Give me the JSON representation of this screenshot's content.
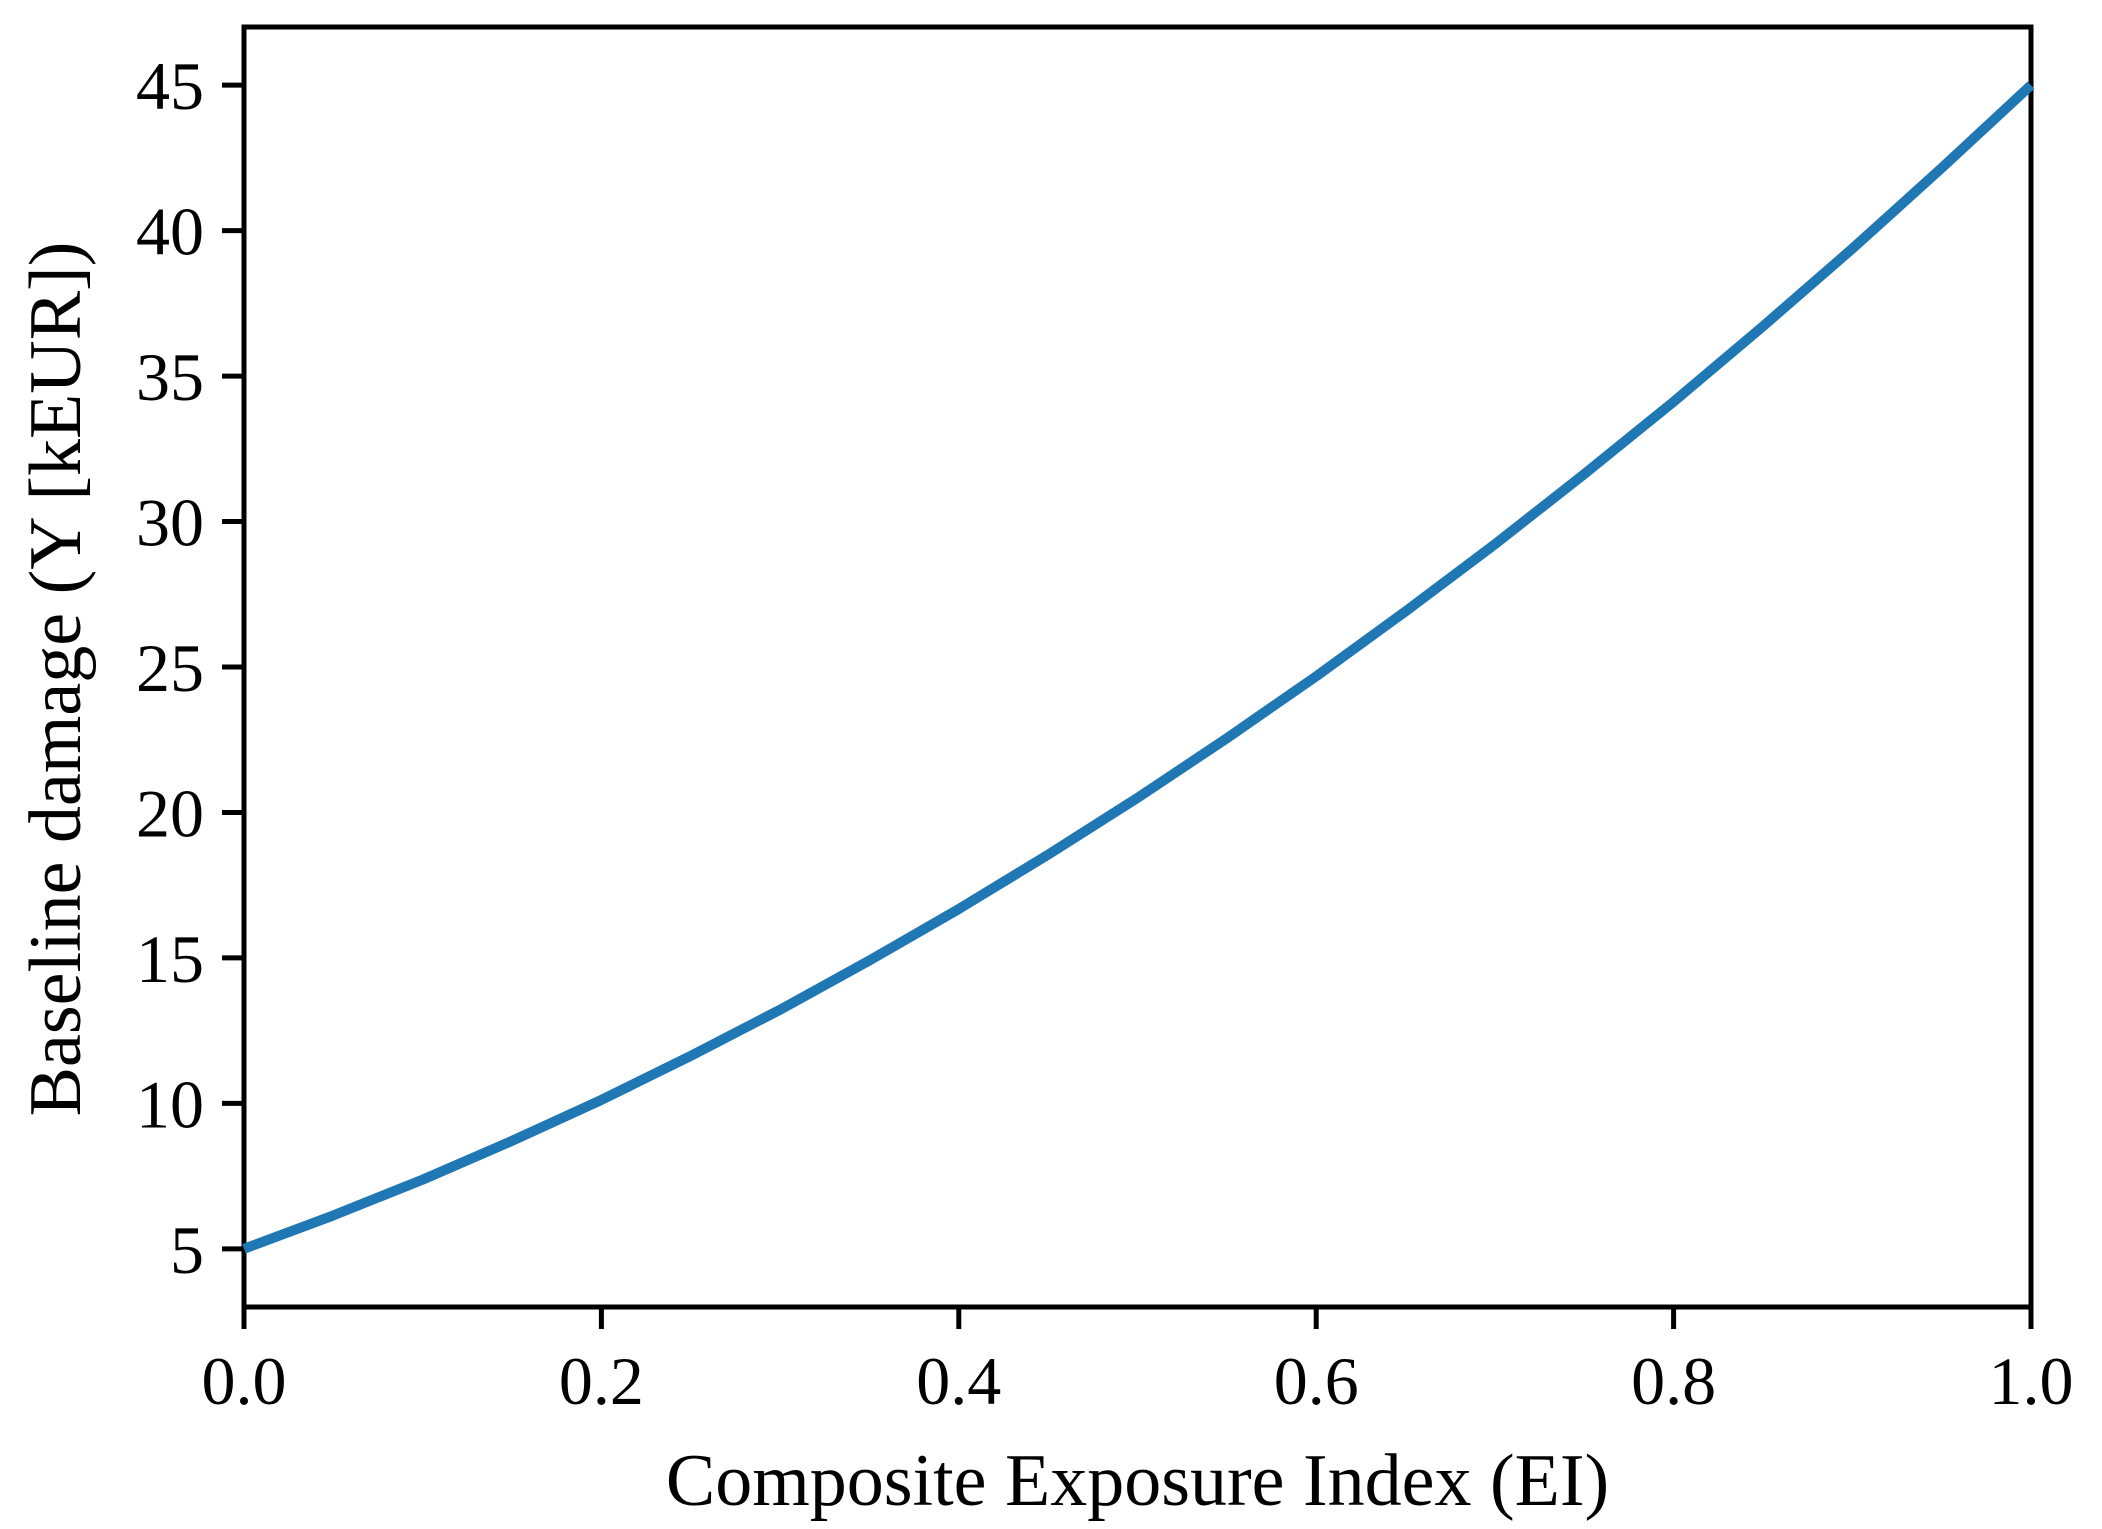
{
  "chart_data": {
    "type": "line",
    "title": "",
    "xlabel": "Composite Exposure Index (EI)",
    "ylabel": "Baseline damage (Y [kEUR])",
    "xlim": [
      0.0,
      1.0
    ],
    "ylim": [
      3,
      47
    ],
    "x_ticks": [
      0.0,
      0.2,
      0.4,
      0.6,
      0.8,
      1.0
    ],
    "x_tick_labels": [
      "0.0",
      "0.2",
      "0.4",
      "0.6",
      "0.8",
      "1.0"
    ],
    "y_ticks": [
      5,
      10,
      15,
      20,
      25,
      30,
      35,
      40,
      45
    ],
    "y_tick_labels": [
      "5",
      "10",
      "15",
      "20",
      "25",
      "30",
      "35",
      "40",
      "45"
    ],
    "grid": false,
    "legend": false,
    "line_color": "#1f77b4",
    "axis_color": "#000000",
    "background_color": "#ffffff",
    "series": [
      {
        "x": [
          0.0,
          0.05,
          0.1,
          0.15,
          0.2,
          0.25,
          0.3,
          0.35,
          0.4,
          0.45,
          0.5,
          0.55,
          0.6,
          0.65,
          0.7,
          0.75,
          0.8,
          0.85,
          0.9,
          0.95,
          1.0
        ],
        "y": [
          5.0,
          6.15,
          7.38,
          8.71,
          10.12,
          11.63,
          13.22,
          14.91,
          16.68,
          18.55,
          20.5,
          22.55,
          24.68,
          26.91,
          29.22,
          31.63,
          34.12,
          36.71,
          39.38,
          42.15,
          45.0
        ]
      }
    ]
  }
}
